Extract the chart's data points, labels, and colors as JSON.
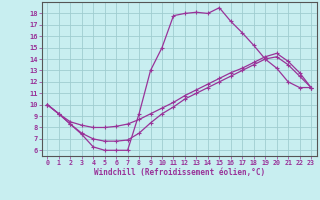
{
  "xlabel": "Windchill (Refroidissement éolien,°C)",
  "bg_color": "#c8eef0",
  "grid_color": "#a0cdd0",
  "line_color": "#993399",
  "x_ticks": [
    0,
    1,
    2,
    3,
    4,
    5,
    6,
    7,
    8,
    9,
    10,
    11,
    12,
    13,
    14,
    15,
    16,
    17,
    18,
    19,
    20,
    21,
    22,
    23
  ],
  "y_ticks": [
    6,
    7,
    8,
    9,
    10,
    11,
    12,
    13,
    14,
    15,
    16,
    17,
    18
  ],
  "ylim": [
    5.5,
    19.0
  ],
  "xlim": [
    -0.5,
    23.5
  ],
  "line1_x": [
    0,
    1,
    2,
    3,
    4,
    5,
    6,
    7,
    8,
    9,
    10,
    11,
    12,
    13,
    14,
    15,
    16,
    17,
    18,
    19,
    20,
    21,
    22,
    23
  ],
  "line1_y": [
    10.0,
    9.2,
    8.3,
    7.4,
    6.3,
    6.0,
    6.0,
    6.0,
    9.2,
    13.0,
    15.0,
    17.8,
    18.0,
    18.1,
    18.0,
    18.5,
    17.3,
    16.3,
    15.2,
    14.0,
    13.2,
    12.0,
    11.5,
    11.5
  ],
  "line2_x": [
    0,
    1,
    2,
    3,
    4,
    5,
    6,
    7,
    8,
    9,
    10,
    11,
    12,
    13,
    14,
    15,
    16,
    17,
    18,
    19,
    20,
    21,
    22,
    23
  ],
  "line2_y": [
    10.0,
    9.2,
    8.5,
    8.2,
    8.0,
    8.0,
    8.1,
    8.3,
    8.7,
    9.2,
    9.7,
    10.2,
    10.8,
    11.3,
    11.8,
    12.3,
    12.8,
    13.2,
    13.7,
    14.2,
    14.5,
    13.8,
    12.8,
    11.5
  ],
  "line3_x": [
    0,
    1,
    2,
    3,
    4,
    5,
    6,
    7,
    8,
    9,
    10,
    11,
    12,
    13,
    14,
    15,
    16,
    17,
    18,
    19,
    20,
    21,
    22,
    23
  ],
  "line3_y": [
    10.0,
    9.2,
    8.3,
    7.5,
    7.0,
    6.8,
    6.8,
    6.9,
    7.5,
    8.4,
    9.2,
    9.8,
    10.5,
    11.0,
    11.5,
    12.0,
    12.5,
    13.0,
    13.5,
    14.0,
    14.2,
    13.5,
    12.5,
    11.5
  ]
}
